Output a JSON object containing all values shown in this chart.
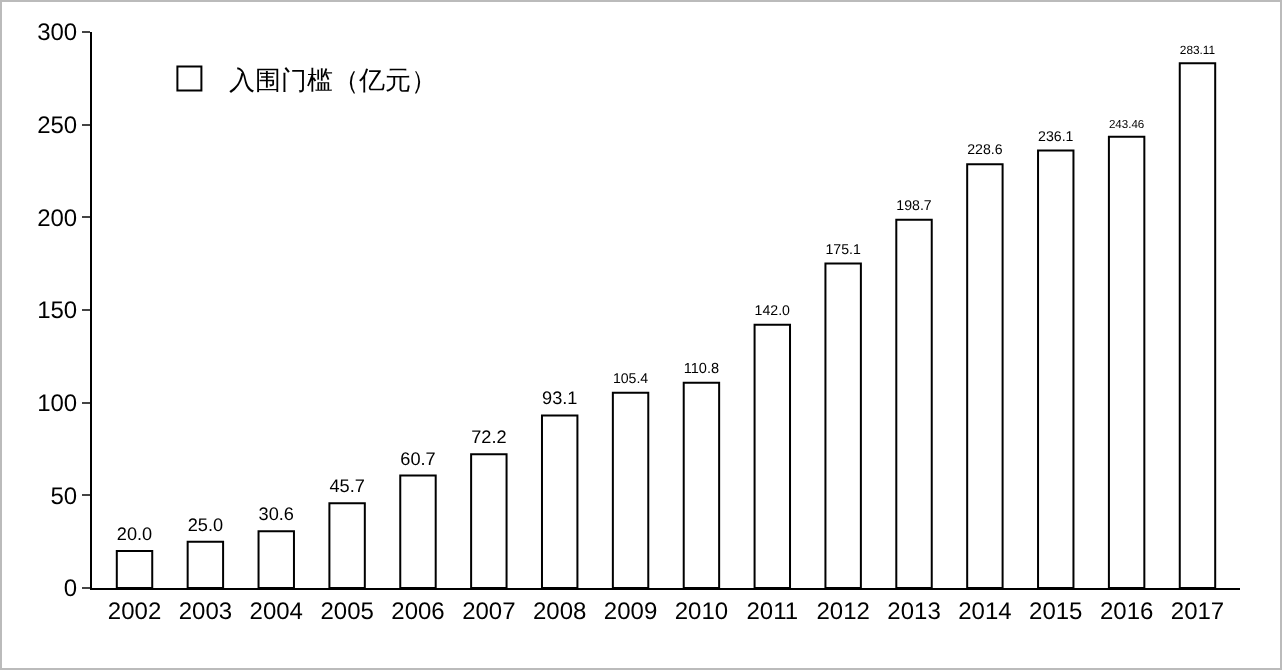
{
  "chart_data": {
    "type": "bar",
    "categories": [
      "2002",
      "2003",
      "2004",
      "2005",
      "2006",
      "2007",
      "2008",
      "2009",
      "2010",
      "2011",
      "2012",
      "2013",
      "2014",
      "2015",
      "2016",
      "2017"
    ],
    "series": [
      {
        "name": "入围门槛（亿元）",
        "color": "#ffffff",
        "values": [
          20.0,
          25.0,
          30.6,
          45.7,
          60.7,
          72.2,
          93.1,
          105.4,
          110.8,
          142.0,
          175.1,
          198.7,
          228.6,
          236.1,
          243.46,
          283.11
        ],
        "value_labels": [
          "20.0",
          "25.0",
          "30.6",
          "45.7",
          "60.7",
          "72.2",
          "93.1",
          "105.4",
          "110.8",
          "142.0",
          "175.1",
          "198.7",
          "228.6",
          "236.1",
          "243.46",
          "283.11"
        ]
      }
    ],
    "ylim": [
      0,
      300
    ],
    "yticks": [
      0,
      50,
      100,
      150,
      200,
      250,
      300
    ],
    "grid": false,
    "legend": "top left"
  }
}
